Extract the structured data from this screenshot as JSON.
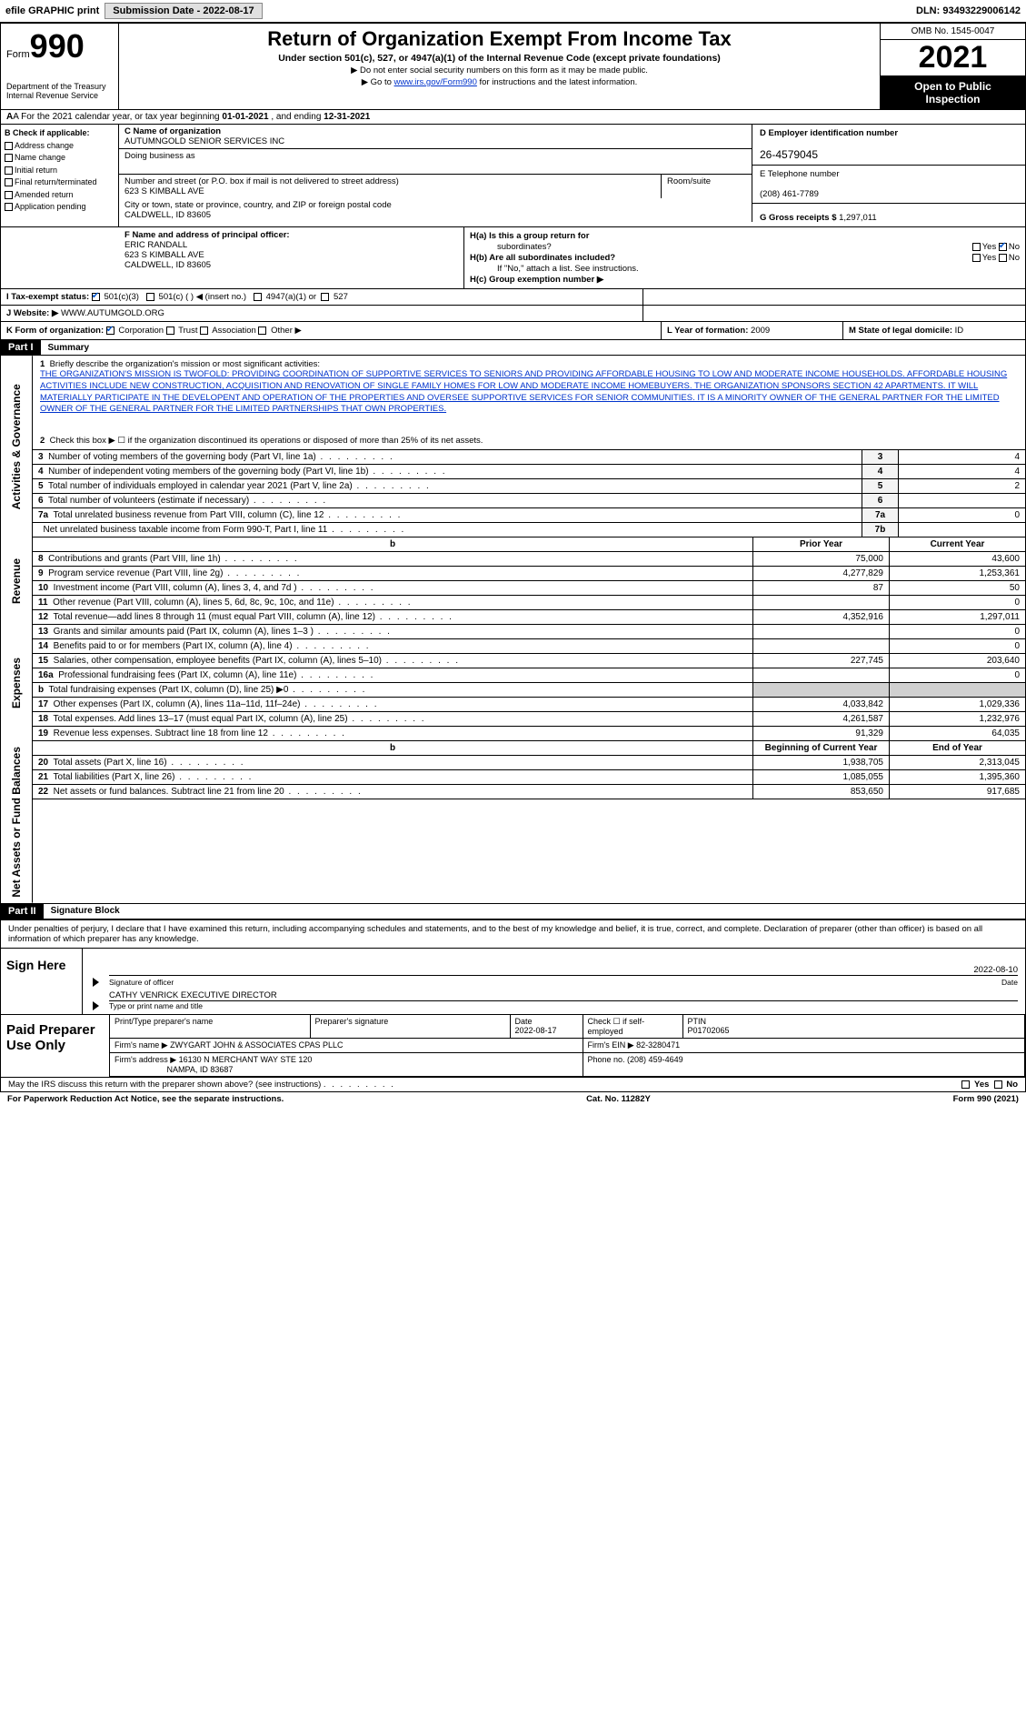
{
  "topbar": {
    "efile": "efile GRAPHIC print",
    "submission_label": "Submission Date - ",
    "submission_date": "2022-08-17",
    "dln_label": "DLN: ",
    "dln": "93493229006142"
  },
  "header": {
    "form_label": "Form",
    "form_number": "990",
    "dept": "Department of the Treasury",
    "irs": "Internal Revenue Service",
    "title": "Return of Organization Exempt From Income Tax",
    "subtitle": "Under section 501(c), 527, or 4947(a)(1) of the Internal Revenue Code (except private foundations)",
    "note1": "▶ Do not enter social security numbers on this form as it may be made public.",
    "note2_pre": "▶ Go to ",
    "note2_link": "www.irs.gov/Form990",
    "note2_post": " for instructions and the latest information.",
    "omb": "OMB No. 1545-0047",
    "year": "2021",
    "otp1": "Open to Public",
    "otp2": "Inspection"
  },
  "rowA": {
    "text_pre": "A For the 2021 calendar year, or tax year beginning ",
    "begin": "01-01-2021",
    "mid": " , and ending ",
    "end": "12-31-2021"
  },
  "colB": {
    "hdr": "B Check if applicable:",
    "items": [
      "Address change",
      "Name change",
      "Initial return",
      "Final return/terminated",
      "Amended return",
      "Application pending"
    ]
  },
  "colC": {
    "name_label": "C Name of organization",
    "name": "AUTUMNGOLD SENIOR SERVICES INC",
    "dba_label": "Doing business as",
    "dba": "",
    "street_label": "Number and street (or P.O. box if mail is not delivered to street address)",
    "street": "623 S KIMBALL AVE",
    "room_label": "Room/suite",
    "city_label": "City or town, state or province, country, and ZIP or foreign postal code",
    "city": "CALDWELL, ID  83605"
  },
  "colD": {
    "ein_label": "D Employer identification number",
    "ein": "26-4579045",
    "phone_label": "E Telephone number",
    "phone": "(208) 461-7789",
    "gross_label": "G Gross receipts $ ",
    "gross": "1,297,011"
  },
  "rowF": {
    "label": "F  Name and address of principal officer:",
    "name": "ERIC RANDALL",
    "street": "623 S KIMBALL AVE",
    "city": "CALDWELL, ID  83605"
  },
  "rowH": {
    "ha": "H(a)  Is this a group return for",
    "ha2": "subordinates?",
    "hb": "H(b)  Are all subordinates included?",
    "hb_note": "If \"No,\" attach a list. See instructions.",
    "hc": "H(c)  Group exemption number ▶",
    "yes": "Yes",
    "no": "No"
  },
  "rowI": {
    "label": "I  Tax-exempt status:",
    "opt1": "501(c)(3)",
    "opt2": "501(c) (   ) ◀ (insert no.)",
    "opt3": "4947(a)(1) or",
    "opt4": "527"
  },
  "rowJ": {
    "label": "J  Website: ▶ ",
    "value": "WWW.AUTUMGOLD.ORG"
  },
  "rowK": {
    "label": "K Form of organization:",
    "opts": [
      "Corporation",
      "Trust",
      "Association",
      "Other ▶"
    ]
  },
  "rowL": {
    "label": "L Year of formation: ",
    "value": "2009"
  },
  "rowM": {
    "label": "M State of legal domicile: ",
    "value": "ID"
  },
  "part1": {
    "hdr": "Part I",
    "title": "Summary",
    "q1_label": "1",
    "q1_text": "Briefly describe the organization's mission or most significant activities:",
    "mission": "THE ORGANIZATION'S MISSION IS TWOFOLD: PROVIDING COORDINATION OF SUPPORTIVE SERVICES TO SENIORS AND PROVIDING AFFORDABLE HOUSING TO LOW AND MODERATE INCOME HOUSEHOLDS. AFFORDABLE HOUSING ACTIVITIES INCLUDE NEW CONSTRUCTION, ACQUISITION AND RENOVATION OF SINGLE FAMILY HOMES FOR LOW AND MODERATE INCOME HOMEBUYERS. THE ORGANIZATION SPONSORS SECTION 42 APARTMENTS. IT WILL MATERIALLY PARTICIPATE IN THE DEVELOPENT AND OPERATION OF THE PROPERTIES AND OVERSEE SUPPORTIVE SERVICES FOR SENIOR COMMUNITIES. IT IS A MINORITY OWNER OF THE GENERAL PARTNER FOR THE LIMITED OWNER OF THE GENERAL PARTNER FOR THE LIMITED PARTNERSHIPS THAT OWN PROPERTIES.",
    "q2": "Check this box ▶ ☐  if the organization discontinued its operations or disposed of more than 25% of its net assets."
  },
  "vlabels": {
    "gov": "Activities & Governance",
    "rev": "Revenue",
    "exp": "Expenses",
    "net": "Net Assets or Fund Balances"
  },
  "gov_lines": [
    {
      "n": "3",
      "desc": "Number of voting members of the governing body (Part VI, line 1a)",
      "box": "3",
      "val": "4"
    },
    {
      "n": "4",
      "desc": "Number of independent voting members of the governing body (Part VI, line 1b)",
      "box": "4",
      "val": "4"
    },
    {
      "n": "5",
      "desc": "Total number of individuals employed in calendar year 2021 (Part V, line 2a)",
      "box": "5",
      "val": "2"
    },
    {
      "n": "6",
      "desc": "Total number of volunteers (estimate if necessary)",
      "box": "6",
      "val": ""
    },
    {
      "n": "7a",
      "desc": "Total unrelated business revenue from Part VIII, column (C), line 12",
      "box": "7a",
      "val": "0"
    },
    {
      "n": "",
      "desc": "Net unrelated business taxable income from Form 990-T, Part I, line 11",
      "box": "7b",
      "val": ""
    }
  ],
  "col_hdrs": {
    "prior": "Prior Year",
    "current": "Current Year",
    "boy": "Beginning of Current Year",
    "eoy": "End of Year"
  },
  "rev_lines": [
    {
      "n": "8",
      "desc": "Contributions and grants (Part VIII, line 1h)",
      "p": "75,000",
      "c": "43,600"
    },
    {
      "n": "9",
      "desc": "Program service revenue (Part VIII, line 2g)",
      "p": "4,277,829",
      "c": "1,253,361"
    },
    {
      "n": "10",
      "desc": "Investment income (Part VIII, column (A), lines 3, 4, and 7d )",
      "p": "87",
      "c": "50"
    },
    {
      "n": "11",
      "desc": "Other revenue (Part VIII, column (A), lines 5, 6d, 8c, 9c, 10c, and 11e)",
      "p": "",
      "c": "0"
    },
    {
      "n": "12",
      "desc": "Total revenue—add lines 8 through 11 (must equal Part VIII, column (A), line 12)",
      "p": "4,352,916",
      "c": "1,297,011"
    }
  ],
  "exp_lines": [
    {
      "n": "13",
      "desc": "Grants and similar amounts paid (Part IX, column (A), lines 1–3 )",
      "p": "",
      "c": "0"
    },
    {
      "n": "14",
      "desc": "Benefits paid to or for members (Part IX, column (A), line 4)",
      "p": "",
      "c": "0"
    },
    {
      "n": "15",
      "desc": "Salaries, other compensation, employee benefits (Part IX, column (A), lines 5–10)",
      "p": "227,745",
      "c": "203,640"
    },
    {
      "n": "16a",
      "desc": "Professional fundraising fees (Part IX, column (A), line 11e)",
      "p": "",
      "c": "0"
    },
    {
      "n": "b",
      "desc": "Total fundraising expenses (Part IX, column (D), line 25) ▶0",
      "p": "shaded",
      "c": "shaded"
    },
    {
      "n": "17",
      "desc": "Other expenses (Part IX, column (A), lines 11a–11d, 11f–24e)",
      "p": "4,033,842",
      "c": "1,029,336"
    },
    {
      "n": "18",
      "desc": "Total expenses. Add lines 13–17 (must equal Part IX, column (A), line 25)",
      "p": "4,261,587",
      "c": "1,232,976"
    },
    {
      "n": "19",
      "desc": "Revenue less expenses. Subtract line 18 from line 12",
      "p": "91,329",
      "c": "64,035"
    }
  ],
  "net_lines": [
    {
      "n": "20",
      "desc": "Total assets (Part X, line 16)",
      "p": "1,938,705",
      "c": "2,313,045"
    },
    {
      "n": "21",
      "desc": "Total liabilities (Part X, line 26)",
      "p": "1,085,055",
      "c": "1,395,360"
    },
    {
      "n": "22",
      "desc": "Net assets or fund balances. Subtract line 21 from line 20",
      "p": "853,650",
      "c": "917,685"
    }
  ],
  "part2": {
    "hdr": "Part II",
    "title": "Signature Block",
    "intro": "Under penalties of perjury, I declare that I have examined this return, including accompanying schedules and statements, and to the best of my knowledge and belief, it is true, correct, and complete. Declaration of preparer (other than officer) is based on all information of which preparer has any knowledge."
  },
  "sign": {
    "side": "Sign Here",
    "sig_label": "Signature of officer",
    "date_label": "Date",
    "date": "2022-08-10",
    "name": "CATHY VENRICK  EXECUTIVE DIRECTOR",
    "name_label": "Type or print name and title"
  },
  "prep": {
    "side": "Paid Preparer Use Only",
    "h1": "Print/Type preparer's name",
    "h2": "Preparer's signature",
    "h3": "Date",
    "h3v": "2022-08-17",
    "h4": "Check ☐ if self-employed",
    "h5": "PTIN",
    "h5v": "P01702065",
    "firm_name_label": "Firm's name    ▶ ",
    "firm_name": "ZWYGART JOHN & ASSOCIATES CPAS PLLC",
    "firm_ein_label": "Firm's EIN ▶ ",
    "firm_ein": "82-3280471",
    "firm_addr_label": "Firm's address ▶ ",
    "firm_addr1": "16130 N MERCHANT WAY STE 120",
    "firm_addr2": "NAMPA, ID  83687",
    "phone_label": "Phone no. ",
    "phone": "(208) 459-4649"
  },
  "footer": {
    "q": "May the IRS discuss this return with the preparer shown above? (see instructions)",
    "yes": "Yes",
    "no": "No",
    "notice": "For Paperwork Reduction Act Notice, see the separate instructions.",
    "cat": "Cat. No. 11282Y",
    "form": "Form 990 (2021)"
  }
}
